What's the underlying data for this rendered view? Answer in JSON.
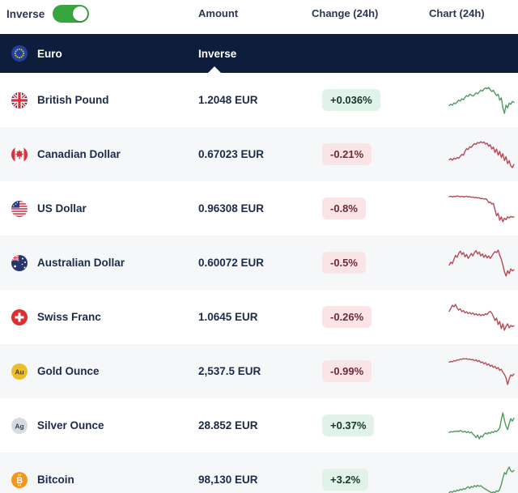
{
  "header": {
    "inverse_label": "Inverse",
    "toggle_on": true,
    "col_amount": "Amount",
    "col_change": "Change (24h)",
    "col_chart": "Chart (24h)"
  },
  "selected": {
    "name": "Euro",
    "icon": "euro-flag-icon",
    "col_label": "Inverse"
  },
  "rows": [
    {
      "name": "British Pound",
      "icon": "british-pound-flag-icon",
      "amount": "1.2048 EUR",
      "change": "+0.036%",
      "direction": "up"
    },
    {
      "name": "Canadian Dollar",
      "icon": "canadian-dollar-flag-icon",
      "amount": "0.67023 EUR",
      "change": "-0.21%",
      "direction": "down"
    },
    {
      "name": "US Dollar",
      "icon": "us-dollar-flag-icon",
      "amount": "0.96308 EUR",
      "change": "-0.8%",
      "direction": "down"
    },
    {
      "name": "Australian Dollar",
      "icon": "australian-dollar-flag-icon",
      "amount": "0.60072 EUR",
      "change": "-0.5%",
      "direction": "down"
    },
    {
      "name": "Swiss Franc",
      "icon": "swiss-franc-flag-icon",
      "amount": "1.0645 EUR",
      "change": "-0.26%",
      "direction": "down"
    },
    {
      "name": "Gold Ounce",
      "icon": "gold-ounce-icon",
      "symbol": "Au",
      "amount": "2,537.5 EUR",
      "change": "-0.99%",
      "direction": "down"
    },
    {
      "name": "Silver Ounce",
      "icon": "silver-ounce-icon",
      "symbol": "Ag",
      "amount": "28.852 EUR",
      "change": "+0.37%",
      "direction": "up"
    },
    {
      "name": "Bitcoin",
      "icon": "bitcoin-icon",
      "symbol": "B",
      "amount": "98,130 EUR",
      "change": "+3.2%",
      "direction": "up"
    }
  ],
  "chart_data": {
    "type": "line",
    "note": "24h sparklines per currency; no axes shown, values normalized 0-100",
    "legend_position": "none",
    "grid": false,
    "series": [
      {
        "name": "British Pound",
        "values": [
          35,
          38,
          36,
          41,
          39,
          43,
          47,
          45,
          50,
          48,
          53,
          57,
          55,
          60,
          58,
          56,
          59,
          63,
          61,
          65,
          69,
          67,
          71,
          74,
          72,
          75,
          70,
          66,
          69,
          62,
          57,
          60,
          47,
          52,
          30,
          18,
          36,
          30,
          40,
          38,
          44,
          42
        ]
      },
      {
        "name": "Canadian Dollar",
        "values": [
          28,
          31,
          27,
          32,
          30,
          34,
          32,
          37,
          42,
          40,
          50,
          57,
          55,
          62,
          60,
          66,
          70,
          68,
          73,
          71,
          75,
          72,
          74,
          69,
          71,
          63,
          67,
          56,
          61,
          47,
          56,
          40,
          50,
          34,
          44,
          26,
          36,
          18,
          26,
          12,
          8,
          16
        ]
      },
      {
        "name": "US Dollar",
        "values": [
          79,
          80,
          78,
          80,
          79,
          81,
          80,
          79,
          80,
          78,
          79,
          80,
          78,
          79,
          77,
          78,
          76,
          77,
          75,
          76,
          73,
          74,
          72,
          73,
          70,
          62,
          64,
          58,
          60,
          42,
          25,
          32,
          12,
          22,
          8,
          18,
          14,
          22,
          19,
          23,
          21,
          22
        ]
      },
      {
        "name": "Australian Dollar",
        "values": [
          30,
          36,
          33,
          42,
          50,
          46,
          54,
          59,
          52,
          56,
          47,
          52,
          44,
          49,
          54,
          49,
          56,
          60,
          53,
          57,
          49,
          53,
          46,
          51,
          45,
          49,
          44,
          49,
          54,
          58,
          56,
          61,
          50,
          42,
          30,
          16,
          7,
          18,
          12,
          22,
          18,
          20
        ]
      },
      {
        "name": "Swiss Franc",
        "values": [
          55,
          62,
          70,
          66,
          72,
          63,
          58,
          61,
          54,
          57,
          51,
          54,
          49,
          52,
          48,
          51,
          46,
          49,
          45,
          48,
          44,
          47,
          45,
          49,
          47,
          52,
          55,
          50,
          42,
          32,
          38,
          22,
          30,
          12,
          24,
          8,
          18,
          24,
          14,
          20,
          17,
          19
        ]
      },
      {
        "name": "Gold Ounce",
        "values": [
          63,
          65,
          64,
          67,
          66,
          69,
          68,
          71,
          70,
          72,
          71,
          72,
          70,
          71,
          69,
          70,
          67,
          69,
          65,
          67,
          62,
          64,
          59,
          62,
          56,
          59,
          53,
          56,
          50,
          53,
          47,
          50,
          43,
          46,
          38,
          33,
          24,
          8,
          22,
          32,
          29,
          34
        ]
      },
      {
        "name": "Silver Ounce",
        "values": [
          41,
          43,
          42,
          44,
          43,
          45,
          43,
          46,
          44,
          42,
          44,
          41,
          43,
          40,
          42,
          37,
          34,
          29,
          35,
          26,
          33,
          30,
          36,
          40,
          37,
          41,
          39,
          43,
          41,
          45,
          43,
          47,
          52,
          72,
          88,
          70,
          56,
          48,
          62,
          74,
          68,
          75
        ]
      },
      {
        "name": "Bitcoin",
        "values": [
          26,
          29,
          27,
          31,
          29,
          33,
          31,
          35,
          33,
          37,
          35,
          39,
          42,
          38,
          43,
          40,
          45,
          42,
          46,
          43,
          45,
          41,
          38,
          35,
          33,
          30,
          28,
          25,
          28,
          26,
          31,
          29,
          35,
          48,
          65,
          80,
          76,
          88,
          95,
          85,
          82,
          86
        ]
      }
    ]
  },
  "theme": {
    "toggle_green": "#38a63f",
    "dark_navy": "#0f1d3d",
    "row_alt_bg": "#f6f7f9",
    "badge_up_bg": "#e1f3e8",
    "badge_up_text": "#17362c",
    "badge_down_bg": "#fbe4e6",
    "badge_down_text": "#6d2a33",
    "spark_up": "#4e9a5e",
    "spark_down": "#b34a55",
    "gold": "#ecbe2a",
    "silver": "#d6dae0",
    "bitcoin_orange": "#f4961e"
  }
}
